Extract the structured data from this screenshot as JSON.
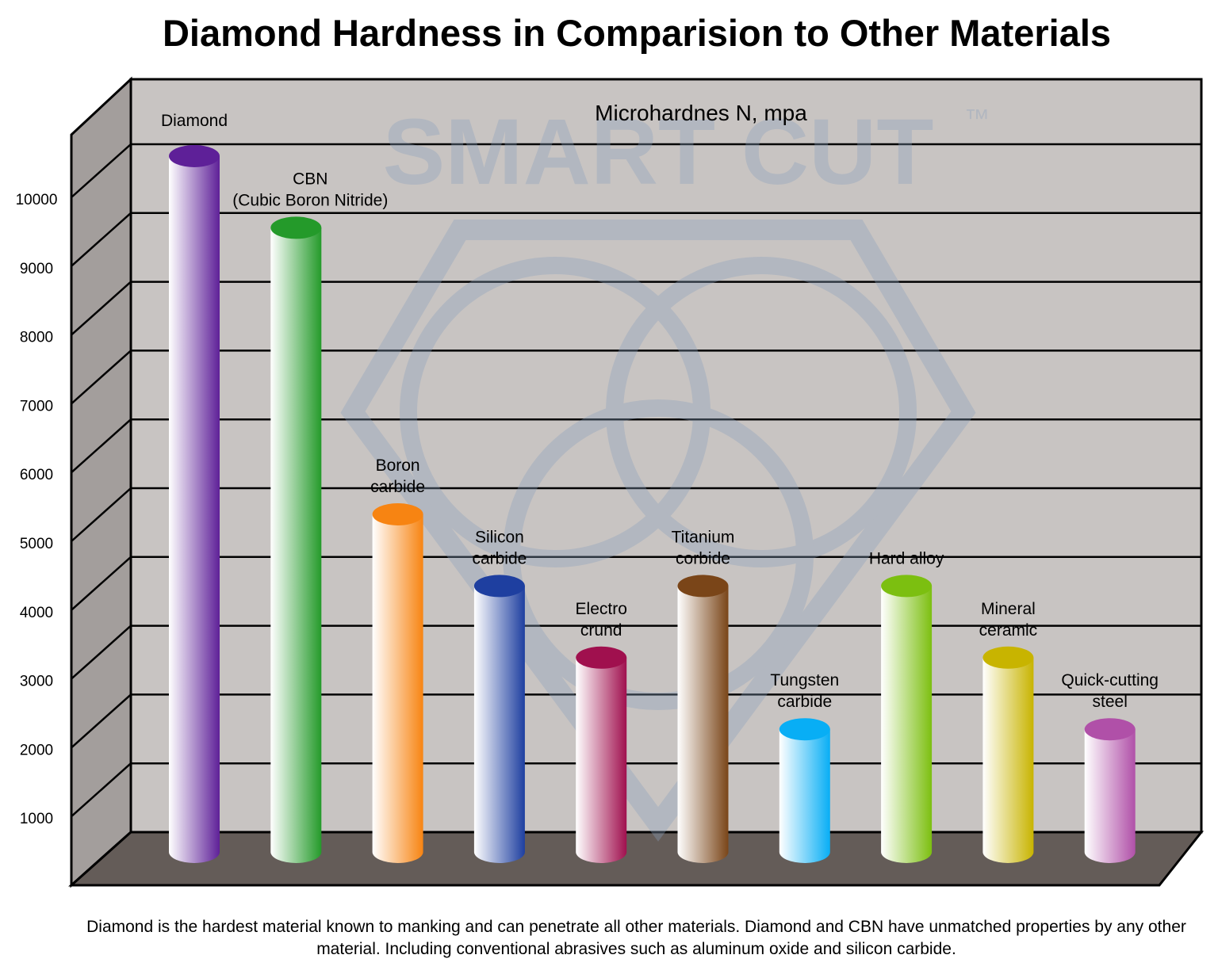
{
  "chart_data": {
    "type": "bar",
    "style": "3d-cylinder",
    "title": "Diamond Hardness in Comparision to Other Materials",
    "subtitle": "Microhardnes N, mpa",
    "ylim": [
      0,
      11000
    ],
    "yticks": [
      "1000",
      "2000",
      "3000",
      "4000",
      "5000",
      "6000",
      "7000",
      "8000",
      "9000",
      "10000"
    ],
    "grid": true,
    "categories": [
      "Diamond",
      "CBN (Cubic Boron Nitride)",
      "Boron carbide",
      "Silicon carbide",
      "Electro crund",
      "Titanium corbide",
      "Tungsten carbide",
      "Hard alloy",
      "Mineral ceramic",
      "Quick-cutting steel"
    ],
    "label_lines": [
      [
        "Diamond"
      ],
      [
        "CBN",
        "(Cubic Boron Nitride)"
      ],
      [
        "Boron",
        "carbide"
      ],
      [
        "Silicon",
        "carbide"
      ],
      [
        "Electro",
        "crund"
      ],
      [
        "Titanium",
        "corbide"
      ],
      [
        "Tungsten",
        "carbide"
      ],
      [
        "Hard alloy"
      ],
      [
        "Mineral",
        "ceramic"
      ],
      [
        "Quick-cutting",
        "steel"
      ]
    ],
    "values": [
      10000,
      9000,
      5000,
      4000,
      3000,
      4000,
      2000,
      4000,
      3000,
      2000
    ],
    "colors": [
      "#5e2098",
      "#249a2a",
      "#f78412",
      "#1e3fa0",
      "#a0104e",
      "#7a4518",
      "#08aef5",
      "#7cbf10",
      "#c8b400",
      "#b050a8"
    ]
  },
  "watermark": "SMART CUT ™",
  "caption": "Diamond is the hardest material known to manking and can penetrate all other materials. Diamond and CBN have unmatched properties by any other material. Including conventional abrasives such as aluminum oxide and silicon carbide."
}
